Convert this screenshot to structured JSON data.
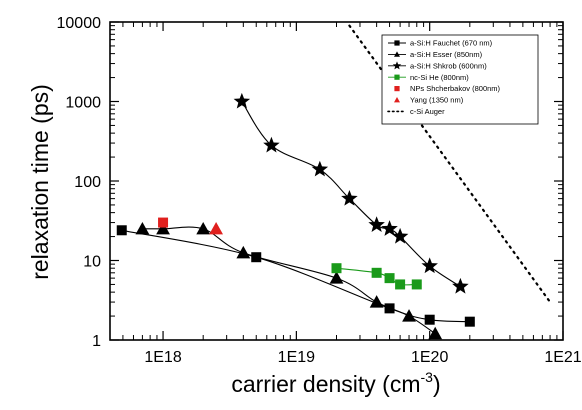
{
  "chart_data": {
    "type": "scatter",
    "xlabel": "carrier density (cm",
    "xlabel_sup": "-3",
    "xlabel_end": ")",
    "ylabel": "relaxation time (ps)",
    "xscale": "log",
    "yscale": "log",
    "xlim": [
      4e+17,
      1e+21
    ],
    "ylim": [
      1,
      10000
    ],
    "x_ticks": [
      {
        "value": 1e+18,
        "label": "1E18"
      },
      {
        "value": 1e+19,
        "label": "1E19"
      },
      {
        "value": 1e+20,
        "label": "1E20"
      },
      {
        "value": 1e+21,
        "label": "1E21"
      }
    ],
    "y_ticks": [
      {
        "value": 1,
        "label": "1"
      },
      {
        "value": 10,
        "label": "10"
      },
      {
        "value": 100,
        "label": "100"
      },
      {
        "value": 1000,
        "label": "1000"
      },
      {
        "value": 10000,
        "label": "10000"
      }
    ],
    "grid": false,
    "legend_position": "top-right",
    "series": [
      {
        "name": "a-Si:H Fauchet (670 nm)",
        "marker": "square",
        "color": "#000000",
        "line": true,
        "x": [
          4.9e+17,
          5e+18,
          5e+19,
          1e+20,
          2e+20
        ],
        "y": [
          24,
          11,
          2.5,
          1.8,
          1.7
        ]
      },
      {
        "name": "a-Si:H Esser (850nm)",
        "marker": "triangle",
        "color": "#000000",
        "line": true,
        "x": [
          7e+17,
          1e+18,
          2e+18,
          4e+18,
          2e+19,
          4e+19,
          7e+19,
          1.1e+20
        ],
        "y": [
          25,
          25,
          25,
          12.5,
          6,
          3,
          2,
          1.2
        ]
      },
      {
        "name": "a-Si:H Shkrob (600nm)",
        "marker": "star",
        "color": "#000000",
        "line": true,
        "x": [
          3.9e+18,
          6.5e+18,
          1.5e+19,
          2.5e+19,
          4e+19,
          5e+19,
          6e+19,
          1e+20,
          1.7e+20
        ],
        "y": [
          1000,
          280,
          140,
          60,
          28,
          25,
          20,
          8.5,
          4.7
        ]
      },
      {
        "name": "nc-Si He (800nm)",
        "marker": "square",
        "color": "#1a9a1a",
        "line": true,
        "x": [
          2e+19,
          4e+19,
          5e+19,
          6e+19,
          8e+19
        ],
        "y": [
          8,
          7,
          6,
          5,
          5
        ]
      },
      {
        "name": "NPs Shcherbakov (800nm)",
        "marker": "square",
        "color": "#e0201e",
        "line": false,
        "x": [
          1e+18
        ],
        "y": [
          30
        ]
      },
      {
        "name": "Yang (1350 nm)",
        "marker": "triangle",
        "color": "#e0201e",
        "line": false,
        "x": [
          2.5e+18
        ],
        "y": [
          25
        ]
      },
      {
        "name": "c-Si Auger",
        "marker": "none",
        "color": "#000000",
        "line": "dotted",
        "x": [
          2.5e+19,
          8e+20
        ],
        "y": [
          9000,
          3
        ]
      }
    ]
  }
}
